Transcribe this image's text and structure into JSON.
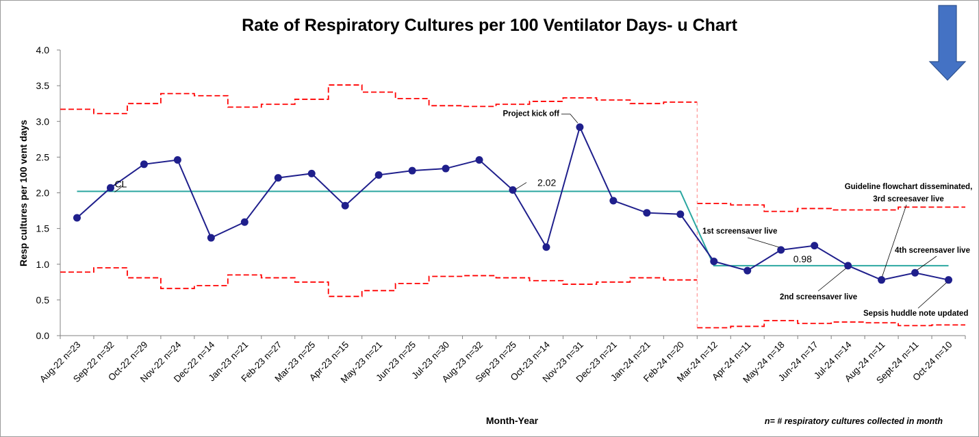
{
  "chart_data": {
    "type": "line",
    "subtype": "u-chart",
    "title": "Rate of Respiratory Cultures per 100 Ventilator Days- u Chart",
    "xlabel": "Month-Year",
    "ylabel": "Resp cultures per 100 vent days",
    "ylim": [
      0,
      4.0
    ],
    "yticks": [
      "0.0",
      "0.5",
      "1.0",
      "1.5",
      "2.0",
      "2.5",
      "3.0",
      "3.5",
      "4.0"
    ],
    "grid": false,
    "categories": [
      "Aug-22 n=23",
      "Sep-22 n=32",
      "Oct-22 n=29",
      "Nov-22 n=24",
      "Dec-22 n=14",
      "Jan-23 n=21",
      "Feb-23 n=27",
      "Mar-23 n=25",
      "Apr-23 n=15",
      "May-23 n=21",
      "Jun-23 n=25",
      "Jul-23 n=30",
      "Aug-23 n=32",
      "Sep-23 n=25",
      "Oct-23 n=14",
      "Nov-23 n=31",
      "Dec-23 n=21",
      "Jan-24 n=21",
      "Feb-24 n=20",
      "Mar-24 n=12",
      "Apr-24 n=11",
      "May-24 n=18",
      "Jun-24 n=17",
      "Jul-24 n=14",
      "Aug-24 n=11",
      "Sept-24 n=11",
      "Oct-24 n=10"
    ],
    "series": [
      {
        "role": "rate",
        "color": "#1f1f8c",
        "values": [
          1.65,
          2.07,
          2.4,
          2.46,
          1.37,
          1.59,
          2.21,
          2.27,
          1.82,
          2.25,
          2.31,
          2.34,
          2.46,
          2.04,
          1.24,
          2.92,
          1.89,
          1.72,
          1.7,
          1.04,
          0.91,
          1.2,
          1.26,
          0.98,
          0.78,
          0.88,
          0.78
        ]
      },
      {
        "role": "center-line",
        "color": "#2aa6a0",
        "values": [
          2.02,
          2.02,
          2.02,
          2.02,
          2.02,
          2.02,
          2.02,
          2.02,
          2.02,
          2.02,
          2.02,
          2.02,
          2.02,
          2.02,
          2.02,
          2.02,
          2.02,
          2.02,
          2.02,
          0.98,
          0.98,
          0.98,
          0.98,
          0.98,
          0.98,
          0.98,
          0.98
        ]
      },
      {
        "role": "upper-control-limit",
        "color": "#ff0000",
        "values": [
          3.17,
          3.11,
          3.25,
          3.39,
          3.36,
          3.2,
          3.24,
          3.31,
          3.51,
          3.41,
          3.32,
          3.22,
          3.21,
          3.24,
          3.28,
          3.33,
          3.3,
          3.25,
          3.27,
          1.85,
          1.83,
          1.74,
          1.78,
          1.76,
          1.76,
          1.8,
          1.8
        ]
      },
      {
        "role": "lower-control-limit",
        "color": "#ff0000",
        "values": [
          0.89,
          0.95,
          0.81,
          0.66,
          0.7,
          0.85,
          0.81,
          0.75,
          0.55,
          0.63,
          0.73,
          0.83,
          0.84,
          0.81,
          0.77,
          0.72,
          0.75,
          0.81,
          0.78,
          0.11,
          0.13,
          0.21,
          0.17,
          0.19,
          0.18,
          0.14,
          0.15
        ]
      }
    ],
    "center_labels": [
      {
        "text": "2.02",
        "index": 13
      },
      {
        "text": "0.98",
        "index": 21
      },
      {
        "text": "CL",
        "index": 1
      }
    ],
    "annotations": [
      {
        "lines": [
          "Project kick off"
        ],
        "index": 15
      },
      {
        "lines": [
          "1st screensaver live"
        ],
        "index": 21
      },
      {
        "lines": [
          "2nd screensaver live"
        ],
        "index": 23
      },
      {
        "lines": [
          "4th screensaver live"
        ],
        "index": 25
      },
      {
        "lines": [
          "Guideline flowchart disseminated,",
          "3rd screesaver live"
        ],
        "index": 24
      },
      {
        "lines": [
          "Sepsis huddle note updated"
        ],
        "index": 26
      }
    ],
    "footnote": "n= # respiratory cultures collected in month",
    "arrow_color": "#4472c4"
  }
}
